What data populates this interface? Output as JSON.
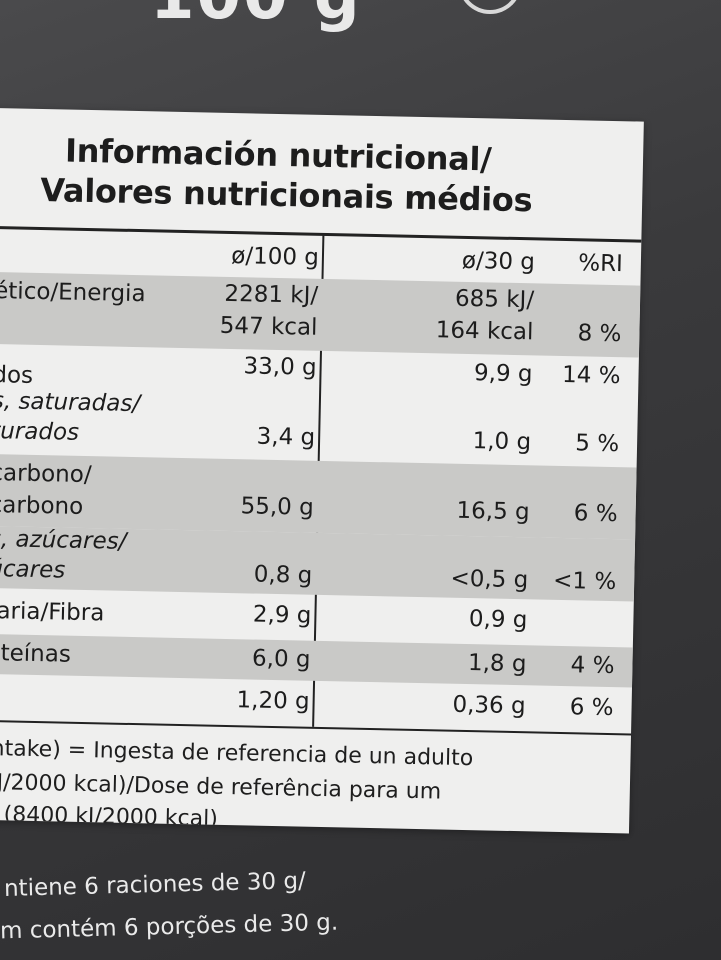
{
  "package": {
    "top_fragment": "100 g"
  },
  "label": {
    "title_line1": "Información nutricional/",
    "title_line2": "Valores nutricionais médios",
    "col_100": "ø/100 g",
    "col_30": "ø/30 g",
    "col_ri": "%RI",
    "rows": [
      {
        "name": "ético/Energia",
        "v100_a": "2281 kJ/",
        "v100_b": "547 kcal",
        "v30_a": "685 kJ/",
        "v30_b": "164 kcal",
        "ri": "8 %"
      },
      {
        "name": "dos",
        "v100": "33,0 g",
        "v30": "9,9 g",
        "ri": "14 %"
      },
      {
        "name_a": "s, saturadas/",
        "name_b": "turados",
        "v100": "3,4 g",
        "v30": "1,0 g",
        "ri": "5 %"
      },
      {
        "name_a": "carbono/",
        "name_b": "carbono",
        "v100": "55,0 g",
        "v30": "16,5 g",
        "ri": "6 %"
      },
      {
        "name_a": "s, azúcares/",
        "name_b": "úcares",
        "v100": "0,8 g",
        "v30": "<0,5 g",
        "ri": "<1 %"
      },
      {
        "name": "taria/Fibra",
        "v100": "2,9 g",
        "v30": "0,9 g",
        "ri": ""
      },
      {
        "name": "oteínas",
        "v100": "6,0 g",
        "v30": "1,8 g",
        "ri": "4 %"
      },
      {
        "name": "",
        "v100": "1,20 g",
        "v30": "0,36 g",
        "ri": "6 %"
      }
    ],
    "footnote_1": "intake) = Ingesta de referencia de un adulto",
    "footnote_2": "kJ/2000 kcal)/Dose de referência para um",
    "footnote_3": "o (8400 kJ/2000 kcal)"
  },
  "below_label": {
    "line1": "ntiene 6 raciones de 30 g/",
    "line2": "m contém 6 porções de 30 g."
  }
}
